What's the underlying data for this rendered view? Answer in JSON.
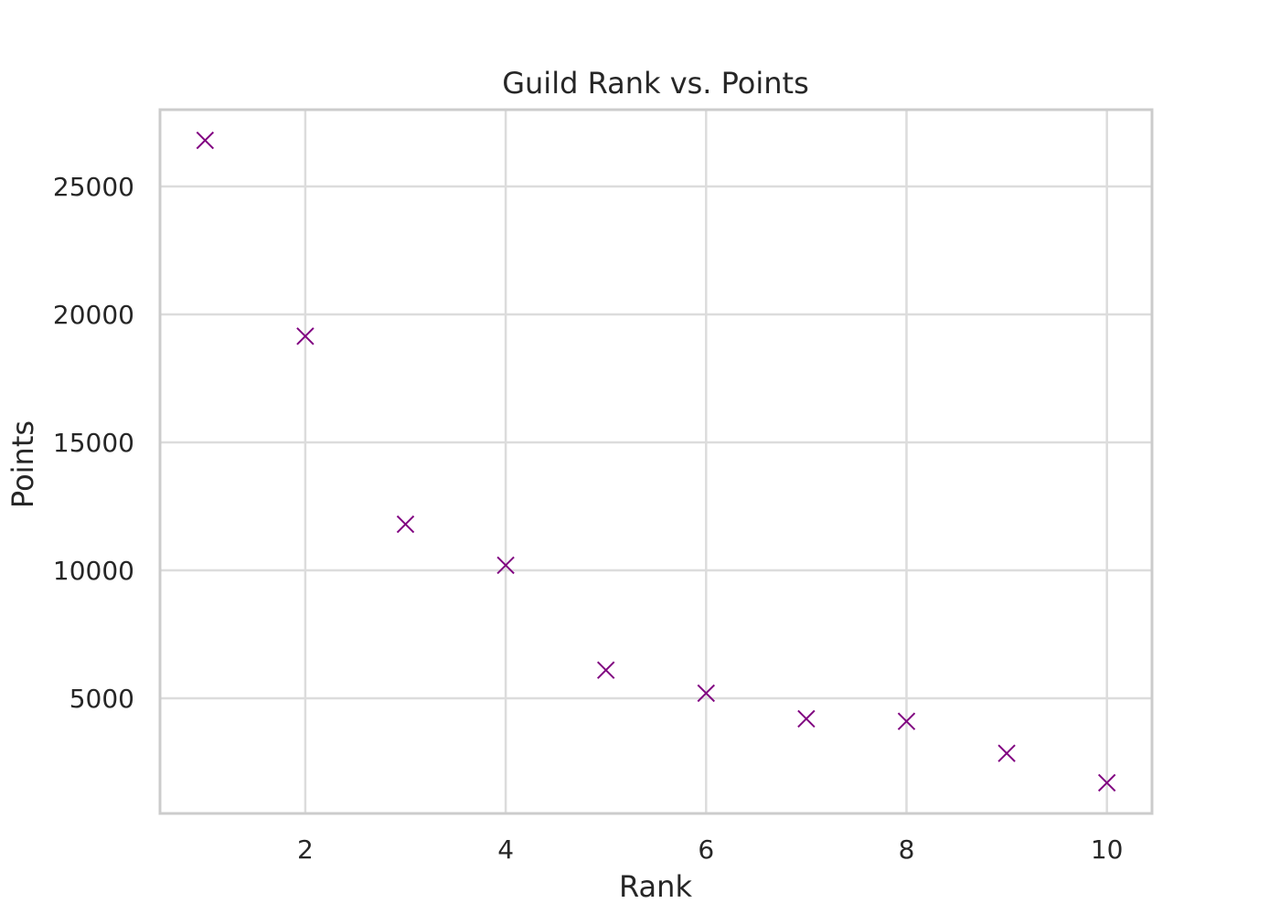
{
  "chart_data": {
    "type": "scatter",
    "title": "Guild Rank vs. Points",
    "xlabel": "Rank",
    "ylabel": "Points",
    "x": [
      1,
      2,
      3,
      4,
      5,
      6,
      7,
      8,
      9,
      10
    ],
    "y": [
      26800,
      19150,
      11800,
      10200,
      6100,
      5200,
      4200,
      4100,
      2850,
      1700
    ],
    "xlim": [
      0.55,
      10.45
    ],
    "ylim": [
      500,
      28000
    ],
    "xticks": [
      2,
      4,
      6,
      8,
      10
    ],
    "yticks": [
      5000,
      10000,
      15000,
      20000,
      25000
    ],
    "marker": "x",
    "marker_color": "#800080",
    "grid": true
  }
}
